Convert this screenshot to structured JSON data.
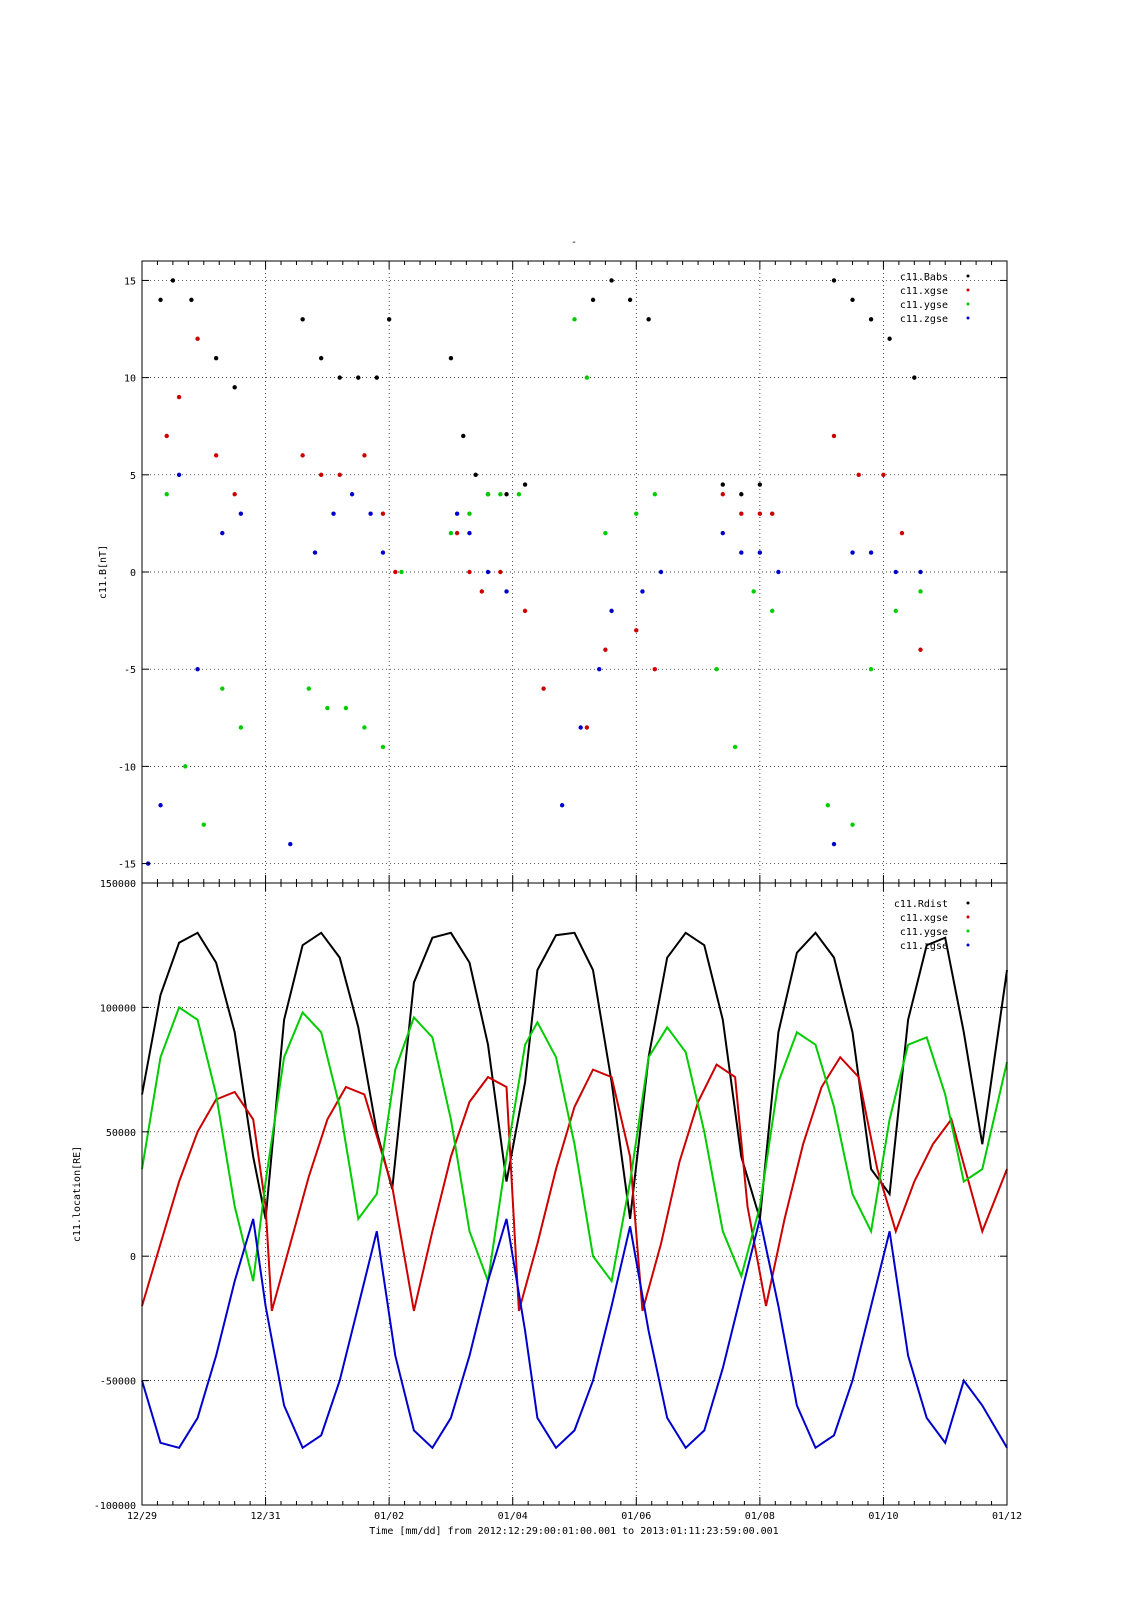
{
  "figure": {
    "top_mark": "-",
    "time_axis_label": "Time [mm/dd]  from 2012:12:29:00:01:00.001  to  2013:01:11:23:59:00.001",
    "time_tick_labels": [
      "12/29",
      "12/31",
      "01/02",
      "01/04",
      "01/06",
      "01/08",
      "01/10",
      "01/12"
    ]
  },
  "chart_data": [
    {
      "type": "scatter",
      "title": "",
      "xlabel": "Time [mm/dd]",
      "ylabel": "c11.B[nT]",
      "x_unit": "days since 12/29",
      "xlim": [
        0,
        14
      ],
      "ylim": [
        -16,
        16
      ],
      "yticks": [
        -15,
        -10,
        -5,
        0,
        5,
        10,
        15
      ],
      "ytick_labels": [
        "-15",
        "-10",
        "-5",
        "0",
        "5",
        "10",
        "15"
      ],
      "grid": true,
      "legend_placement": "top-right",
      "series": [
        {
          "name": "c11.Babs",
          "color": "#000000",
          "x": [
            0.3,
            0.5,
            0.8,
            1.2,
            1.5,
            2.6,
            2.9,
            3.2,
            3.5,
            3.8,
            4.0,
            5.0,
            5.2,
            5.4,
            5.6,
            5.9,
            6.2,
            7.3,
            7.6,
            7.9,
            8.2,
            9.4,
            9.7,
            10.0,
            11.2,
            11.5,
            11.8,
            12.1,
            12.5
          ],
          "y": [
            14,
            15,
            14,
            11,
            9.5,
            13,
            11,
            10,
            10,
            10,
            13,
            11,
            7,
            5,
            4,
            4,
            4.5,
            14,
            15,
            14,
            13,
            4.5,
            4,
            4.5,
            15,
            14,
            13,
            12,
            10
          ]
        },
        {
          "name": "c11.xgse",
          "color": "#cc0000",
          "x": [
            0.4,
            0.6,
            0.9,
            1.2,
            1.5,
            2.6,
            2.9,
            3.2,
            3.6,
            3.9,
            4.1,
            5.1,
            5.3,
            5.5,
            5.8,
            6.2,
            6.5,
            7.2,
            7.5,
            8.0,
            8.3,
            9.4,
            9.7,
            10.0,
            10.2,
            11.2,
            11.6,
            12.0,
            12.3,
            12.6
          ],
          "y": [
            7,
            9,
            12,
            6,
            4,
            6,
            5,
            5,
            6,
            3,
            0,
            2,
            0,
            -1,
            0,
            -2,
            -6,
            -8,
            -4,
            -3,
            -5,
            4,
            3,
            3,
            3,
            7,
            5,
            5,
            2,
            -4
          ]
        },
        {
          "name": "c11.ygse",
          "color": "#00cc00",
          "x": [
            0.4,
            0.7,
            1.0,
            1.3,
            1.6,
            2.7,
            3.0,
            3.3,
            3.6,
            3.9,
            4.2,
            5.0,
            5.3,
            5.6,
            5.8,
            6.1,
            7.0,
            7.2,
            7.5,
            8.0,
            8.3,
            9.3,
            9.6,
            9.9,
            10.2,
            11.1,
            11.5,
            11.8,
            12.2,
            12.6
          ],
          "y": [
            4,
            -10,
            -13,
            -6,
            -8,
            -6,
            -7,
            -7,
            -8,
            -9,
            0,
            2,
            3,
            4,
            4,
            4,
            13,
            10,
            2,
            3,
            4,
            -5,
            -9,
            -1,
            -2,
            -12,
            -13,
            -5,
            -2,
            -1
          ]
        },
        {
          "name": "c11.zgse",
          "color": "#0000cc",
          "x": [
            0.1,
            0.3,
            0.6,
            0.9,
            1.3,
            1.6,
            2.4,
            2.8,
            3.1,
            3.4,
            3.7,
            3.9,
            5.1,
            5.3,
            5.6,
            5.9,
            6.8,
            7.1,
            7.4,
            7.6,
            8.1,
            8.4,
            9.4,
            9.7,
            10.0,
            10.3,
            11.2,
            11.5,
            11.8,
            12.2,
            12.6
          ],
          "y": [
            -15,
            -12,
            5,
            -5,
            2,
            3,
            -14,
            1,
            3,
            4,
            3,
            1,
            3,
            2,
            0,
            -1,
            -12,
            -8,
            -5,
            -2,
            -1,
            0,
            2,
            1,
            1,
            0,
            -14,
            1,
            1,
            0,
            0
          ]
        }
      ]
    },
    {
      "type": "line",
      "title": "",
      "xlabel": "Time [mm/dd]",
      "ylabel": "c11.location[RE]",
      "x_unit": "days since 12/29",
      "xlim": [
        0,
        14
      ],
      "ylim": [
        -100000,
        150000
      ],
      "yticks": [
        -100000,
        -50000,
        0,
        50000,
        100000,
        150000
      ],
      "ytick_labels": [
        "-100000",
        "-50000",
        "0",
        "50000",
        "100000",
        "150000"
      ],
      "grid": true,
      "legend_placement": "top-right",
      "series": [
        {
          "name": "c11.Rdist",
          "color": "#000000",
          "x": [
            0.0,
            0.3,
            0.6,
            0.9,
            1.2,
            1.5,
            1.8,
            2.0,
            2.3,
            2.6,
            2.9,
            3.2,
            3.5,
            3.8,
            4.05,
            4.4,
            4.7,
            5.0,
            5.3,
            5.6,
            5.9,
            6.2,
            6.4,
            6.7,
            7.0,
            7.3,
            7.6,
            7.9,
            8.2,
            8.5,
            8.8,
            9.1,
            9.4,
            9.7,
            10.0,
            10.3,
            10.6,
            10.9,
            11.2,
            11.5,
            11.8,
            12.1,
            12.4,
            12.7,
            13.0,
            13.3,
            13.6,
            14.0
          ],
          "y": [
            65000,
            105000,
            126000,
            130000,
            118000,
            90000,
            40000,
            15000,
            95000,
            125000,
            130000,
            120000,
            92000,
            50000,
            27000,
            110000,
            128000,
            130000,
            118000,
            85000,
            30000,
            70000,
            115000,
            129000,
            130000,
            115000,
            70000,
            15000,
            80000,
            120000,
            130000,
            125000,
            95000,
            40000,
            15000,
            90000,
            122000,
            130000,
            120000,
            90000,
            35000,
            25000,
            95000,
            125000,
            128000,
            90000,
            45000,
            115000
          ]
        },
        {
          "name": "c11.xgse",
          "color": "#cc0000",
          "x": [
            0.0,
            0.3,
            0.6,
            0.9,
            1.2,
            1.5,
            1.8,
            2.0,
            2.1,
            2.4,
            2.7,
            3.0,
            3.3,
            3.6,
            3.9,
            4.05,
            4.4,
            4.7,
            5.0,
            5.3,
            5.6,
            5.9,
            6.1,
            6.4,
            6.7,
            7.0,
            7.3,
            7.6,
            7.9,
            8.1,
            8.4,
            8.7,
            9.0,
            9.3,
            9.6,
            9.8,
            10.1,
            10.4,
            10.7,
            11.0,
            11.3,
            11.6,
            11.9,
            12.2,
            12.5,
            12.8,
            13.1,
            13.6,
            14.0
          ],
          "y": [
            -20000,
            5000,
            30000,
            50000,
            63000,
            66000,
            55000,
            20000,
            -22000,
            5000,
            32000,
            55000,
            68000,
            65000,
            40000,
            28000,
            -22000,
            10000,
            40000,
            62000,
            72000,
            68000,
            -22000,
            5000,
            35000,
            60000,
            75000,
            72000,
            40000,
            -22000,
            5000,
            38000,
            62000,
            77000,
            72000,
            20000,
            -20000,
            15000,
            45000,
            68000,
            80000,
            72000,
            35000,
            10000,
            30000,
            45000,
            55000,
            10000,
            35000
          ]
        },
        {
          "name": "c11.ygse",
          "color": "#00cc00",
          "x": [
            0.0,
            0.3,
            0.6,
            0.9,
            1.2,
            1.5,
            1.8,
            2.0,
            2.3,
            2.6,
            2.9,
            3.2,
            3.5,
            3.8,
            4.1,
            4.4,
            4.7,
            5.0,
            5.3,
            5.6,
            5.9,
            6.2,
            6.4,
            6.7,
            7.0,
            7.3,
            7.6,
            7.9,
            8.2,
            8.5,
            8.8,
            9.1,
            9.4,
            9.7,
            10.0,
            10.3,
            10.6,
            10.9,
            11.2,
            11.5,
            11.8,
            12.1,
            12.4,
            12.7,
            13.0,
            13.3,
            13.6,
            14.0
          ],
          "y": [
            35000,
            80000,
            100000,
            95000,
            65000,
            20000,
            -10000,
            30000,
            80000,
            98000,
            90000,
            60000,
            15000,
            25000,
            75000,
            96000,
            88000,
            55000,
            10000,
            -10000,
            40000,
            85000,
            94000,
            80000,
            45000,
            0,
            -10000,
            30000,
            80000,
            92000,
            82000,
            50000,
            10000,
            -8000,
            20000,
            70000,
            90000,
            85000,
            60000,
            25000,
            10000,
            55000,
            85000,
            88000,
            65000,
            30000,
            35000,
            78000
          ]
        },
        {
          "name": "c11.zgse",
          "color": "#0000cc",
          "x": [
            0.0,
            0.3,
            0.6,
            0.9,
            1.2,
            1.5,
            1.8,
            2.0,
            2.3,
            2.6,
            2.9,
            3.2,
            3.5,
            3.8,
            4.1,
            4.4,
            4.7,
            5.0,
            5.3,
            5.6,
            5.9,
            6.2,
            6.4,
            6.7,
            7.0,
            7.3,
            7.6,
            7.9,
            8.2,
            8.5,
            8.8,
            9.1,
            9.4,
            9.7,
            10.0,
            10.3,
            10.6,
            10.9,
            11.2,
            11.5,
            11.8,
            12.1,
            12.4,
            12.7,
            13.0,
            13.3,
            13.6,
            14.0
          ],
          "y": [
            -50000,
            -75000,
            -77000,
            -65000,
            -40000,
            -10000,
            15000,
            -20000,
            -60000,
            -77000,
            -72000,
            -50000,
            -20000,
            10000,
            -40000,
            -70000,
            -77000,
            -65000,
            -40000,
            -10000,
            15000,
            -30000,
            -65000,
            -77000,
            -70000,
            -50000,
            -20000,
            12000,
            -30000,
            -65000,
            -77000,
            -70000,
            -45000,
            -15000,
            15000,
            -20000,
            -60000,
            -77000,
            -72000,
            -50000,
            -20000,
            10000,
            -40000,
            -65000,
            -75000,
            -50000,
            -60000,
            -77000
          ]
        }
      ]
    }
  ]
}
